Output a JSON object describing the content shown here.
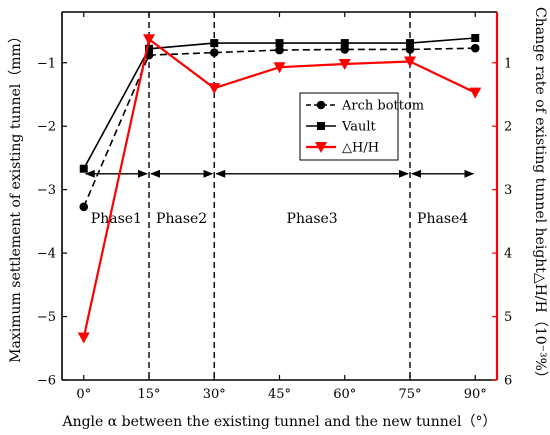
{
  "colors": {
    "axis_left": "#000000",
    "axis_right": "#ff0000",
    "series_arch": "#000000",
    "series_vault": "#000000",
    "series_dh": "#ff0000"
  },
  "chart_data": {
    "type": "line",
    "xlabel": "Angle α between the existing tunnel and the new tunnel（°）",
    "ylabel_left": "Maximum settlement of existing tunnel（mm）",
    "ylabel_right": "Change rate of existing tunnel height△H/H（10⁻³%）",
    "x": [
      0,
      15,
      30,
      45,
      60,
      75,
      90
    ],
    "x_tick_labels": [
      "0°",
      "15°",
      "30°",
      "45°",
      "60°",
      "75°",
      "90°"
    ],
    "xlim": [
      -5,
      95
    ],
    "y_left_lim": [
      -6,
      -0.2
    ],
    "y_left_ticks": [
      -6,
      -5,
      -4,
      -3,
      -2,
      -1
    ],
    "y_left_tick_labels": [
      "−6",
      "−5",
      "−4",
      "−3",
      "−2",
      "−1"
    ],
    "y_right_lim": [
      6,
      0.2
    ],
    "y_right_ticks": [
      1,
      2,
      3,
      4,
      5,
      6
    ],
    "y_right_tick_labels": [
      "1",
      "2",
      "3",
      "4",
      "5",
      "6"
    ],
    "series": [
      {
        "name": "Arch bottom",
        "axis": "left",
        "marker": "circle",
        "linestyle": "dashed",
        "values": [
          -3.27,
          -0.88,
          -0.84,
          -0.8,
          -0.79,
          -0.79,
          -0.77
        ]
      },
      {
        "name": "Vault",
        "axis": "left",
        "marker": "square",
        "linestyle": "solid",
        "values": [
          -2.67,
          -0.78,
          -0.69,
          -0.69,
          -0.69,
          -0.69,
          -0.61
        ]
      },
      {
        "name": "△H/H",
        "axis": "right",
        "marker": "triangle-down",
        "linestyle": "solid",
        "values": [
          5.33,
          0.63,
          1.4,
          1.07,
          1.02,
          0.98,
          1.47
        ]
      }
    ],
    "phase_boundaries": [
      15,
      30,
      75
    ],
    "phase_arrow_y": -2.75,
    "phases": [
      {
        "label": "Phase1",
        "center": 7.5
      },
      {
        "label": "Phase2",
        "center": 22.5
      },
      {
        "label": "Phase3",
        "center": 52.5
      },
      {
        "label": "Phase4",
        "center": 82.5
      }
    ],
    "phase_label_y": -3.45,
    "legend_position": "center-right",
    "grid": false
  }
}
